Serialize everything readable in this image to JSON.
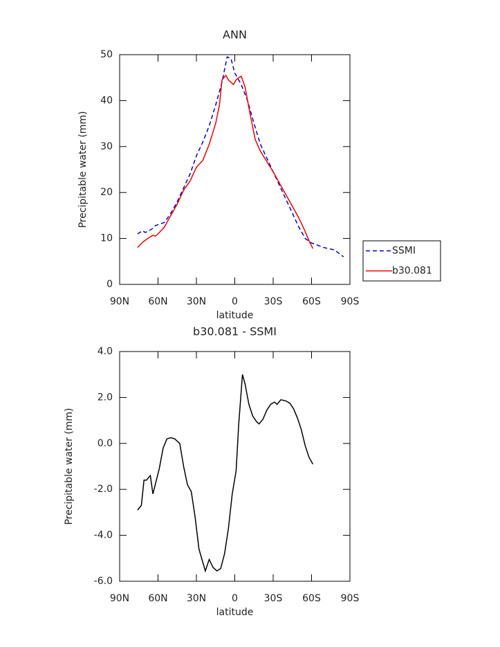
{
  "chart_data": [
    {
      "type": "line",
      "title": "ANN",
      "xlabel": "latitude",
      "ylabel": "Precipitable water (mm)",
      "legend": "right",
      "xlim": [
        90,
        -90
      ],
      "xticks": [
        {
          "value": 90,
          "label": "90N"
        },
        {
          "value": 60,
          "label": "60N"
        },
        {
          "value": 30,
          "label": "30N"
        },
        0,
        {
          "value": -30,
          "label": "30S"
        },
        {
          "value": -60,
          "label": "60S"
        },
        {
          "value": -90,
          "label": "90S"
        }
      ],
      "ylim": [
        0,
        50
      ],
      "yticks": [
        0,
        10,
        20,
        30,
        40,
        50
      ],
      "series": [
        {
          "name": "SSMI",
          "color": "#0000cc",
          "linestyle": "dashed",
          "x": [
            76,
            72,
            70,
            65,
            62,
            60,
            55,
            50,
            45,
            40,
            35,
            30,
            25,
            20,
            15,
            10,
            6,
            3,
            0,
            -3,
            -5,
            -10,
            -15,
            -20,
            -25,
            -30,
            -35,
            -40,
            -45,
            -50,
            -55,
            -60,
            -65,
            -70,
            -78,
            -85
          ],
          "values": [
            11,
            11.7,
            11.3,
            12,
            12.8,
            13,
            13.5,
            15.5,
            18,
            21,
            24,
            28,
            31,
            34.5,
            39,
            44,
            49.5,
            49.2,
            46,
            44.5,
            43.5,
            40,
            35,
            30.5,
            27.5,
            24.5,
            21.5,
            18.5,
            15.5,
            12.5,
            10,
            9,
            8.5,
            8,
            7.5,
            6
          ]
        },
        {
          "name": "b30.081",
          "color": "#ee0000",
          "linestyle": "solid",
          "x": [
            76,
            72,
            68,
            64,
            62,
            60,
            55,
            50,
            45,
            40,
            35,
            30,
            25,
            20,
            15,
            12,
            10,
            7,
            5,
            3,
            1,
            -1,
            -3,
            -5,
            -8,
            -12,
            -16,
            -20,
            -30,
            -40,
            -50,
            -55,
            -58,
            -61
          ],
          "values": [
            8,
            9.2,
            10,
            10.7,
            10.5,
            11,
            12.5,
            15,
            17.5,
            20.5,
            22.5,
            25.5,
            27,
            30.5,
            35,
            39,
            44.5,
            45.5,
            44.5,
            44,
            43.5,
            44.5,
            45,
            45.3,
            43,
            37,
            31.5,
            29,
            24.5,
            19.5,
            14.5,
            11.5,
            9.5,
            7.8
          ]
        }
      ]
    },
    {
      "type": "line",
      "title": "b30.081 - SSMI",
      "xlabel": "latitude",
      "ylabel": "Precipitable water (mm)",
      "xlim": [
        90,
        -90
      ],
      "xticks": [
        {
          "value": 90,
          "label": "90N"
        },
        {
          "value": 60,
          "label": "60N"
        },
        {
          "value": 30,
          "label": "30N"
        },
        0,
        {
          "value": -30,
          "label": "30S"
        },
        {
          "value": -60,
          "label": "60S"
        },
        {
          "value": -90,
          "label": "90S"
        }
      ],
      "ylim": [
        -6,
        4
      ],
      "yticks": [
        {
          "value": -6,
          "label": "-6.0"
        },
        {
          "value": -4,
          "label": "-4.0"
        },
        {
          "value": -2,
          "label": "-2.0"
        },
        {
          "value": 0,
          "label": "0.0"
        },
        {
          "value": 2,
          "label": "2.0"
        },
        {
          "value": 4,
          "label": "4.0"
        }
      ],
      "color": "#000000",
      "x": [
        76,
        73,
        71,
        69,
        66,
        64,
        59,
        56,
        53,
        50,
        47,
        43,
        40,
        37,
        34,
        31,
        28,
        23,
        20,
        17,
        14,
        11,
        8,
        5,
        2,
        -1,
        -3,
        -6,
        -8,
        -11,
        -14,
        -17,
        -19,
        -22,
        -25,
        -28,
        -31,
        -33,
        -36,
        -40,
        -43,
        -46,
        -49,
        -52,
        -55,
        -58,
        -61
      ],
      "values": [
        -2.9,
        -2.7,
        -1.6,
        -1.6,
        -1.4,
        -2.2,
        -1.1,
        -0.2,
        0.2,
        0.25,
        0.2,
        0,
        -1,
        -1.8,
        -2.1,
        -3.2,
        -4.6,
        -5.55,
        -5.05,
        -5.4,
        -5.55,
        -5.45,
        -4.8,
        -3.7,
        -2.2,
        -1.2,
        0.8,
        3.0,
        2.6,
        1.7,
        1.2,
        0.95,
        0.85,
        1.05,
        1.45,
        1.7,
        1.8,
        1.7,
        1.9,
        1.85,
        1.75,
        1.5,
        1.1,
        0.6,
        -0.1,
        -0.6,
        -0.9
      ]
    }
  ]
}
